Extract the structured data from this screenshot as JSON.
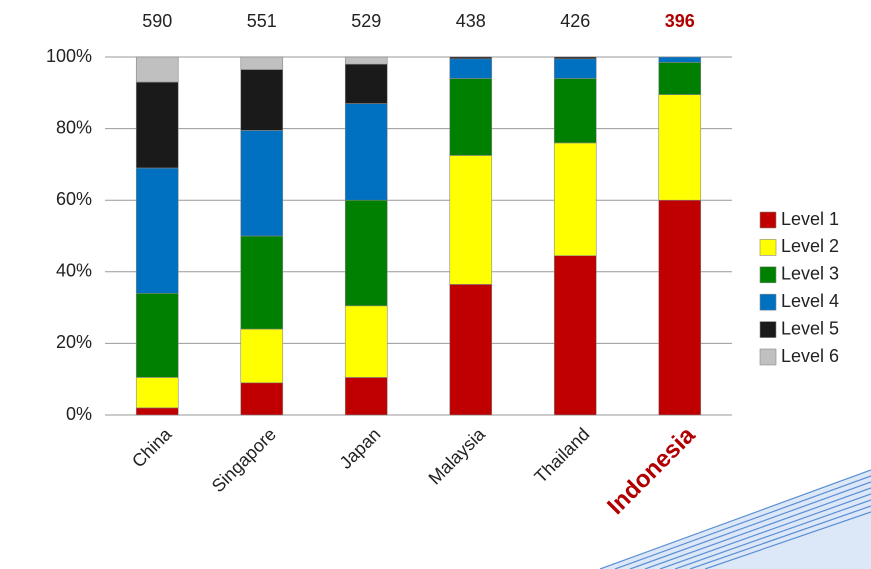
{
  "chart_data": {
    "type": "stacked_bar",
    "categories": [
      "China",
      "Singapore",
      "Japan",
      "Malaysia",
      "Thailand",
      "Indonesia"
    ],
    "top_labels": [
      "590",
      "551",
      "529",
      "438",
      "426",
      "396"
    ],
    "highlight_index": 5,
    "highlight_color": "#b00000",
    "series": [
      {
        "name": "Level 1",
        "color": "#c00000",
        "values": [
          2,
          9,
          10.5,
          36.5,
          44.5,
          60
        ]
      },
      {
        "name": "Level 2",
        "color": "#ffff00",
        "values": [
          8.5,
          15,
          20,
          36,
          31.5,
          29.5
        ]
      },
      {
        "name": "Level 3",
        "color": "#008000",
        "values": [
          23.5,
          26,
          29.5,
          21.5,
          18,
          9
        ]
      },
      {
        "name": "Level 4",
        "color": "#0070c0",
        "values": [
          35,
          29.5,
          27,
          5.5,
          5.5,
          1.5
        ]
      },
      {
        "name": "Level 5",
        "color": "#1a1a1a",
        "values": [
          24,
          17,
          11,
          0.5,
          0.5,
          0
        ]
      },
      {
        "name": "Level 6",
        "color": "#c0c0c0",
        "values": [
          7,
          3.5,
          2,
          0,
          0,
          0
        ]
      }
    ],
    "ylim": [
      0,
      100
    ],
    "yticks": [
      {
        "value": 0,
        "label": "0%"
      },
      {
        "value": 20,
        "label": "20%"
      },
      {
        "value": 40,
        "label": "40%"
      },
      {
        "value": 60,
        "label": "60%"
      },
      {
        "value": 80,
        "label": "80%"
      },
      {
        "value": 100,
        "label": "100%"
      }
    ],
    "grid": true,
    "legend": "right"
  }
}
